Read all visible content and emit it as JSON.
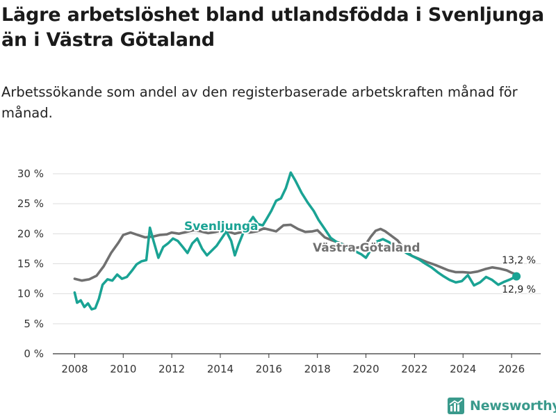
{
  "title": "Lägre arbetslöshet bland utlandsfödda i Svenljunga än i Västra Götaland",
  "subtitle": "Arbetssökande som andel av den registerbaserade arbetskraften månad för månad.",
  "brand": {
    "name": "Newsworthy",
    "color": "#3a9a8c"
  },
  "colors": {
    "svenljunga": "#1aa394",
    "vastra_gotaland": "#707070",
    "grid": "#dddddd",
    "axis": "#333333"
  },
  "chart_data": {
    "type": "line",
    "title": "Lägre arbetslöshet bland utlandsfödda i Svenljunga än i Västra Götaland",
    "subtitle": "Arbetssökande som andel av den registerbaserade arbetskraften månad för månad.",
    "xlabel": "",
    "ylabel": "",
    "xlim": [
      2007.1,
      2027.2
    ],
    "ylim": [
      0,
      30
    ],
    "xticks": [
      2008,
      2010,
      2012,
      2014,
      2016,
      2018,
      2020,
      2022,
      2024,
      2026
    ],
    "xtick_labels": [
      "2008",
      "2010",
      "2012",
      "2014",
      "2016",
      "2018",
      "2020",
      "2022",
      "2024",
      "2026"
    ],
    "yticks": [
      0,
      5,
      10,
      15,
      20,
      25,
      30
    ],
    "ytick_labels": [
      "0 %",
      "5 %",
      "10 %",
      "15 %",
      "20 %",
      "25 %",
      "30 %"
    ],
    "grid": true,
    "series": [
      {
        "name": "Västra Götaland",
        "label": "Västra Götaland",
        "color": "#707070",
        "end_label": "13,2 %",
        "points": [
          [
            2008.0,
            12.5
          ],
          [
            2008.3,
            12.2
          ],
          [
            2008.6,
            12.4
          ],
          [
            2008.9,
            13.0
          ],
          [
            2009.2,
            14.6
          ],
          [
            2009.5,
            16.8
          ],
          [
            2009.8,
            18.5
          ],
          [
            2010.0,
            19.8
          ],
          [
            2010.3,
            20.2
          ],
          [
            2010.6,
            19.8
          ],
          [
            2010.9,
            19.4
          ],
          [
            2011.2,
            19.5
          ],
          [
            2011.5,
            19.8
          ],
          [
            2011.8,
            19.9
          ],
          [
            2012.0,
            20.2
          ],
          [
            2012.3,
            20.0
          ],
          [
            2012.6,
            20.3
          ],
          [
            2012.9,
            20.6
          ],
          [
            2013.2,
            20.4
          ],
          [
            2013.5,
            20.1
          ],
          [
            2013.8,
            20.3
          ],
          [
            2014.0,
            20.5
          ],
          [
            2014.3,
            20.4
          ],
          [
            2014.6,
            20.0
          ],
          [
            2014.9,
            20.3
          ],
          [
            2015.2,
            20.2
          ],
          [
            2015.5,
            20.4
          ],
          [
            2015.8,
            20.9
          ],
          [
            2016.0,
            20.7
          ],
          [
            2016.3,
            20.4
          ],
          [
            2016.6,
            21.4
          ],
          [
            2016.9,
            21.5
          ],
          [
            2017.2,
            20.8
          ],
          [
            2017.5,
            20.3
          ],
          [
            2017.8,
            20.4
          ],
          [
            2018.0,
            20.6
          ],
          [
            2018.3,
            19.4
          ],
          [
            2018.6,
            18.9
          ],
          [
            2018.9,
            18.5
          ],
          [
            2019.2,
            18.0
          ],
          [
            2019.5,
            17.6
          ],
          [
            2019.8,
            17.8
          ],
          [
            2020.0,
            18.3
          ],
          [
            2020.2,
            19.5
          ],
          [
            2020.4,
            20.5
          ],
          [
            2020.6,
            20.8
          ],
          [
            2020.8,
            20.4
          ],
          [
            2021.0,
            19.8
          ],
          [
            2021.3,
            18.9
          ],
          [
            2021.6,
            17.4
          ],
          [
            2021.9,
            16.3
          ],
          [
            2022.2,
            15.8
          ],
          [
            2022.5,
            15.3
          ],
          [
            2022.8,
            14.9
          ],
          [
            2023.1,
            14.4
          ],
          [
            2023.4,
            13.9
          ],
          [
            2023.7,
            13.6
          ],
          [
            2024.0,
            13.6
          ],
          [
            2024.3,
            13.5
          ],
          [
            2024.6,
            13.7
          ],
          [
            2024.9,
            14.1
          ],
          [
            2025.2,
            14.4
          ],
          [
            2025.5,
            14.2
          ],
          [
            2025.8,
            13.9
          ],
          [
            2026.0,
            13.5
          ],
          [
            2026.2,
            13.2
          ]
        ]
      },
      {
        "name": "Svenljunga",
        "label": "Svenljunga",
        "color": "#1aa394",
        "end_label": "12,9 %",
        "points": [
          [
            2008.0,
            10.2
          ],
          [
            2008.1,
            8.5
          ],
          [
            2008.25,
            8.9
          ],
          [
            2008.4,
            7.8
          ],
          [
            2008.55,
            8.4
          ],
          [
            2008.7,
            7.4
          ],
          [
            2008.85,
            7.6
          ],
          [
            2009.0,
            9.2
          ],
          [
            2009.15,
            11.5
          ],
          [
            2009.35,
            12.4
          ],
          [
            2009.55,
            12.2
          ],
          [
            2009.75,
            13.2
          ],
          [
            2009.95,
            12.5
          ],
          [
            2010.15,
            12.8
          ],
          [
            2010.35,
            13.8
          ],
          [
            2010.55,
            14.9
          ],
          [
            2010.75,
            15.4
          ],
          [
            2010.95,
            15.6
          ],
          [
            2011.1,
            21.0
          ],
          [
            2011.25,
            18.8
          ],
          [
            2011.45,
            16.0
          ],
          [
            2011.65,
            17.8
          ],
          [
            2011.85,
            18.4
          ],
          [
            2012.05,
            19.2
          ],
          [
            2012.25,
            18.8
          ],
          [
            2012.45,
            17.8
          ],
          [
            2012.65,
            16.8
          ],
          [
            2012.85,
            18.4
          ],
          [
            2013.05,
            19.2
          ],
          [
            2013.25,
            17.5
          ],
          [
            2013.45,
            16.4
          ],
          [
            2013.65,
            17.2
          ],
          [
            2013.85,
            18.0
          ],
          [
            2014.05,
            19.2
          ],
          [
            2014.25,
            20.4
          ],
          [
            2014.45,
            18.8
          ],
          [
            2014.6,
            16.4
          ],
          [
            2014.75,
            18.2
          ],
          [
            2014.95,
            20.2
          ],
          [
            2015.15,
            21.6
          ],
          [
            2015.35,
            22.8
          ],
          [
            2015.55,
            21.6
          ],
          [
            2015.75,
            21.4
          ],
          [
            2015.9,
            22.4
          ],
          [
            2016.1,
            23.8
          ],
          [
            2016.3,
            25.5
          ],
          [
            2016.5,
            25.9
          ],
          [
            2016.7,
            27.6
          ],
          [
            2016.9,
            30.2
          ],
          [
            2017.1,
            28.8
          ],
          [
            2017.35,
            26.8
          ],
          [
            2017.6,
            25.2
          ],
          [
            2017.85,
            23.8
          ],
          [
            2018.05,
            22.3
          ],
          [
            2018.3,
            20.8
          ],
          [
            2018.55,
            19.3
          ],
          [
            2018.8,
            18.6
          ],
          [
            2019.05,
            18.2
          ],
          [
            2019.3,
            17.4
          ],
          [
            2019.55,
            17.1
          ],
          [
            2019.8,
            16.6
          ],
          [
            2020.0,
            16.0
          ],
          [
            2020.2,
            17.3
          ],
          [
            2020.45,
            18.7
          ],
          [
            2020.7,
            19.1
          ],
          [
            2020.95,
            18.6
          ],
          [
            2021.2,
            18.0
          ],
          [
            2021.45,
            17.4
          ],
          [
            2021.7,
            16.7
          ],
          [
            2021.95,
            16.2
          ],
          [
            2022.2,
            15.7
          ],
          [
            2022.45,
            15.0
          ],
          [
            2022.7,
            14.4
          ],
          [
            2022.95,
            13.6
          ],
          [
            2023.2,
            12.9
          ],
          [
            2023.45,
            12.3
          ],
          [
            2023.7,
            11.9
          ],
          [
            2023.95,
            12.1
          ],
          [
            2024.2,
            13.1
          ],
          [
            2024.45,
            11.4
          ],
          [
            2024.7,
            11.9
          ],
          [
            2024.95,
            12.8
          ],
          [
            2025.2,
            12.3
          ],
          [
            2025.45,
            11.5
          ],
          [
            2025.7,
            12.0
          ],
          [
            2025.95,
            12.4
          ],
          [
            2026.2,
            12.9
          ]
        ]
      }
    ]
  }
}
